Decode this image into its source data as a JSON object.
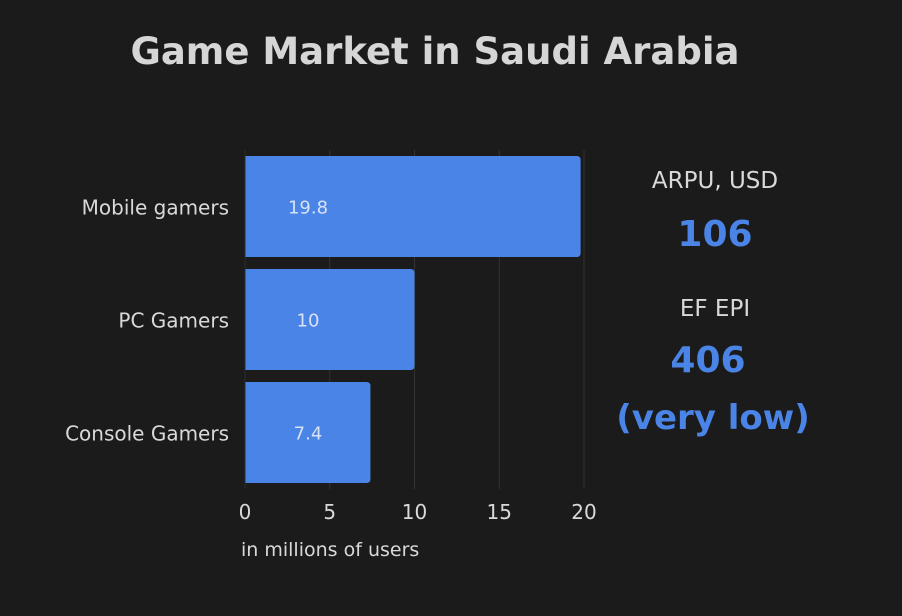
{
  "title": "Game Market in Saudi Arabia",
  "chart_data": {
    "type": "bar",
    "orientation": "horizontal",
    "categories": [
      "Mobile gamers",
      "PC Gamers",
      "Console Gamers"
    ],
    "values": [
      19.8,
      10,
      7.4
    ],
    "value_labels": [
      "19.8",
      "10",
      "7.4"
    ],
    "xlabel": "in millions of users",
    "xlim": [
      0,
      20
    ],
    "xticks": [
      0,
      5,
      10,
      15,
      20
    ],
    "bar_color": "#4a84e6",
    "grid": true
  },
  "stats": {
    "arpu_label": "ARPU, USD",
    "arpu_value": "106",
    "epi_label": "EF EPI",
    "epi_value": "406",
    "epi_note": "(very low)"
  },
  "colors": {
    "background": "#1b1b1b",
    "accent": "#4a84e6",
    "text": "#d9d9d9"
  }
}
